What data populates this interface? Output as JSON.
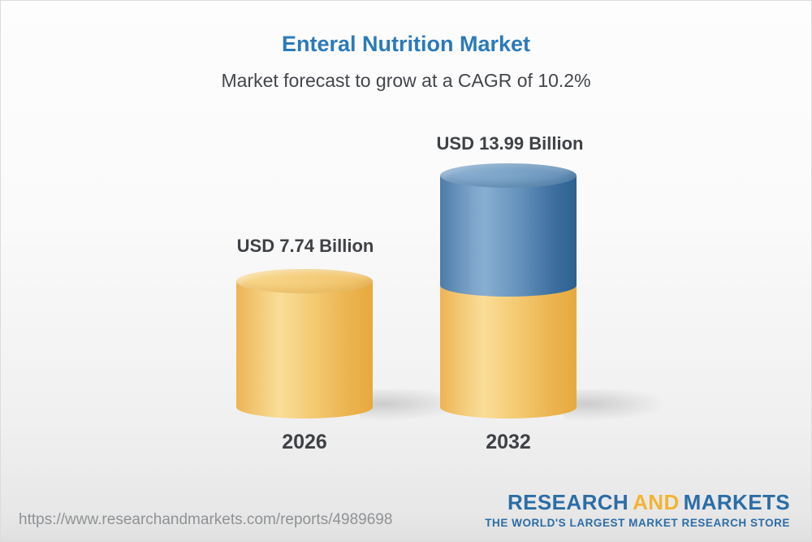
{
  "header": {
    "title": "Enteral Nutrition Market",
    "title_color": "#2b7ab8",
    "subtitle": "Market forecast to grow at a CAGR of 10.2%"
  },
  "chart_data": {
    "type": "bar",
    "subtype": "3d-stacked-cylinder",
    "unit": "USD Billion",
    "categories": [
      "2026",
      "2032"
    ],
    "values": [
      7.74,
      13.99
    ],
    "value_labels": [
      "USD 7.74 Billion",
      "USD 13.99 Billion"
    ],
    "cagr": "10.2%",
    "series": [
      {
        "name": "base-2026-level",
        "color": "#f0c167",
        "values": [
          7.74,
          7.74
        ]
      },
      {
        "name": "growth-to-2032",
        "color": "#5d8cb7",
        "values": [
          0,
          6.25
        ]
      }
    ],
    "legend_position": "none",
    "axes": "none",
    "grid": false
  },
  "footer": {
    "url": "https://www.researchandmarkets.com/reports/4989698",
    "logo": {
      "word1": "RESEARCH",
      "word2": "AND",
      "word3": "MARKETS",
      "tagline": "THE WORLD'S LARGEST MARKET RESEARCH STORE",
      "blue": "#2b6da6",
      "gold": "#f2b434"
    }
  }
}
